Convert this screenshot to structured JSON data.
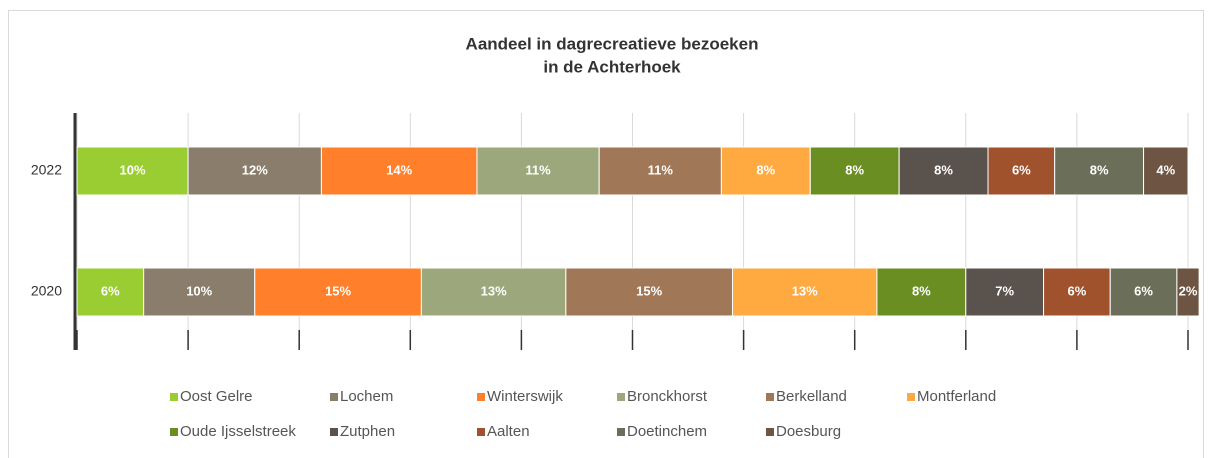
{
  "chart_data": {
    "type": "stacked_hbar",
    "title": [
      "Aandeel in dagrecreatieve bezoeken",
      "in de Achterhoek"
    ],
    "categories": [
      "2022",
      "2020"
    ],
    "xlim": [
      0,
      100
    ],
    "xticks": [
      0,
      10,
      20,
      30,
      40,
      50,
      60,
      70,
      80,
      90,
      100
    ],
    "grid": true,
    "legend": "bottom",
    "series": [
      {
        "name": "Oost Gelre",
        "color": "#9acd32",
        "values": [
          10,
          6
        ],
        "value_labels": [
          "10%",
          "6%"
        ]
      },
      {
        "name": "Lochem",
        "color": "#8b7d6b",
        "values": [
          12,
          10
        ],
        "value_labels": [
          "12%",
          "10%"
        ]
      },
      {
        "name": "Winterswijk",
        "color": "#ff7f2a",
        "values": [
          14,
          15
        ],
        "value_labels": [
          "14%",
          "15%"
        ]
      },
      {
        "name": "Bronckhorst",
        "color": "#9ca87c",
        "values": [
          11,
          13
        ],
        "value_labels": [
          "11%",
          "13%"
        ]
      },
      {
        "name": "Berkelland",
        "color": "#a07858",
        "values": [
          11,
          15
        ],
        "value_labels": [
          "11%",
          "15%"
        ]
      },
      {
        "name": "Montferland",
        "color": "#ffaa40",
        "values": [
          8,
          13
        ],
        "value_labels": [
          "8%",
          "13%"
        ]
      },
      {
        "name": "Oude Ijsselstreek",
        "color": "#6b8e23",
        "values": [
          8,
          8
        ],
        "value_labels": [
          "8%",
          "8%"
        ]
      },
      {
        "name": "Zutphen",
        "color": "#5a524c",
        "values": [
          8,
          7
        ],
        "value_labels": [
          "8%",
          "7%"
        ]
      },
      {
        "name": "Aalten",
        "color": "#a0522d",
        "values": [
          6,
          6
        ],
        "value_labels": [
          "6%",
          "6%"
        ]
      },
      {
        "name": "Doetinchem",
        "color": "#6b6e58",
        "values": [
          8,
          6
        ],
        "value_labels": [
          "8%",
          "6%"
        ]
      },
      {
        "name": "Doesburg",
        "color": "#6e5442",
        "values": [
          4,
          2
        ],
        "value_labels": [
          "4%",
          "2%"
        ]
      }
    ]
  }
}
